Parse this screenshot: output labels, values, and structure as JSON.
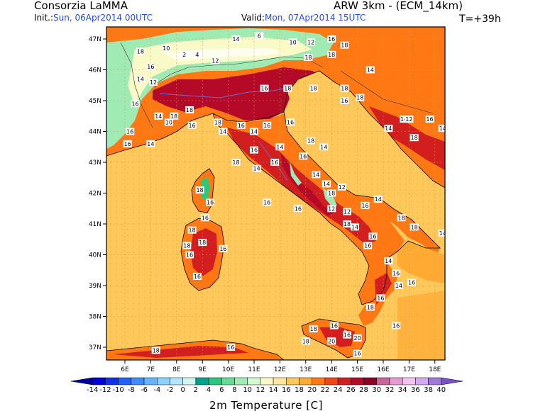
{
  "header": {
    "producer": "Consorzia LaMMA",
    "model": "ARW 3km - (ECM_14km)",
    "init_label": "Init.:",
    "init_value": "Sun, 06Apr2014 00UTC",
    "valid_label": "Valid:",
    "valid_value": "Mon, 07Apr2014 15UTC",
    "lead_time": "T=+39h"
  },
  "axes": {
    "lon_ticks": [
      "6E",
      "7E",
      "8E",
      "9E",
      "10E",
      "11E",
      "12E",
      "13E",
      "14E",
      "15E",
      "16E",
      "17E",
      "18E"
    ],
    "lat_ticks": [
      "47N",
      "46N",
      "45N",
      "44N",
      "43N",
      "42N",
      "41N",
      "40N",
      "39N",
      "38N",
      "37N"
    ]
  },
  "colorbar": {
    "title": "2m Temperature [C]",
    "labels": [
      "-14",
      "-12",
      "-10",
      "-8",
      "-6",
      "-4",
      "-2",
      "0",
      "2",
      "4",
      "6",
      "8",
      "10",
      "12",
      "14",
      "16",
      "18",
      "20",
      "22",
      "24",
      "26",
      "28",
      "30",
      "32",
      "34",
      "36",
      "38",
      "40"
    ],
    "colors": [
      "#0000a0",
      "#0000d8",
      "#1030f0",
      "#2060ff",
      "#3c8cff",
      "#64b4ff",
      "#8cd2ff",
      "#b4e6ff",
      "#d2f5f0",
      "#00a08c",
      "#28c87d",
      "#64dc96",
      "#a0ebb4",
      "#d2fad2",
      "#fafac8",
      "#ffe6a0",
      "#ffc85a",
      "#ffaa32",
      "#ff7814",
      "#f04614",
      "#d21e1e",
      "#b40a28",
      "#8c0028",
      "#c8649b",
      "#e69bd2",
      "#f0c3f0",
      "#d2aaf0",
      "#a078dc",
      "#7850c8"
    ]
  },
  "map_labels": [
    {
      "v": "16",
      "lon": 7.0,
      "lat": 46.1
    },
    {
      "v": "18",
      "lon": 6.6,
      "lat": 46.6
    },
    {
      "v": "10",
      "lon": 7.6,
      "lat": 46.7
    },
    {
      "v": "2",
      "lon": 8.3,
      "lat": 46.5
    },
    {
      "v": "4",
      "lon": 8.8,
      "lat": 46.5
    },
    {
      "v": "12",
      "lon": 9.5,
      "lat": 46.3
    },
    {
      "v": "14",
      "lon": 10.3,
      "lat": 47.0
    },
    {
      "v": "6",
      "lon": 11.2,
      "lat": 47.1
    },
    {
      "v": "10",
      "lon": 12.5,
      "lat": 46.9
    },
    {
      "v": "12",
      "lon": 13.2,
      "lat": 46.9
    },
    {
      "v": "16",
      "lon": 14.0,
      "lat": 47.0
    },
    {
      "v": "18",
      "lon": 14.5,
      "lat": 46.8
    },
    {
      "v": "14",
      "lon": 15.5,
      "lat": 46.0
    },
    {
      "v": "18",
      "lon": 14.0,
      "lat": 46.5
    },
    {
      "v": "14",
      "lon": 6.6,
      "lat": 45.7
    },
    {
      "v": "12",
      "lon": 7.1,
      "lat": 45.6
    },
    {
      "v": "16",
      "lon": 6.4,
      "lat": 44.9
    },
    {
      "v": "14",
      "lon": 7.3,
      "lat": 44.5
    },
    {
      "v": "10",
      "lon": 7.7,
      "lat": 44.3
    },
    {
      "v": "16",
      "lon": 6.2,
      "lat": 44.0
    },
    {
      "v": "18",
      "lon": 7.9,
      "lat": 44.5
    },
    {
      "v": "16",
      "lon": 8.6,
      "lat": 44.2
    },
    {
      "v": "18",
      "lon": 8.5,
      "lat": 44.7
    },
    {
      "v": "18",
      "lon": 9.6,
      "lat": 44.3
    },
    {
      "v": "14",
      "lon": 9.8,
      "lat": 44.0
    },
    {
      "v": "16",
      "lon": 10.5,
      "lat": 44.2
    },
    {
      "v": "14",
      "lon": 11.0,
      "lat": 44.0
    },
    {
      "v": "16",
      "lon": 11.5,
      "lat": 44.2
    },
    {
      "v": "16",
      "lon": 12.4,
      "lat": 44.3
    },
    {
      "v": "18",
      "lon": 12.3,
      "lat": 45.4
    },
    {
      "v": "16",
      "lon": 11.4,
      "lat": 45.4
    },
    {
      "v": "18",
      "lon": 13.1,
      "lat": 46.4
    },
    {
      "v": "18",
      "lon": 13.3,
      "lat": 45.4
    },
    {
      "v": "18",
      "lon": 14.5,
      "lat": 45.4
    },
    {
      "v": "16",
      "lon": 14.5,
      "lat": 45.0
    },
    {
      "v": "18",
      "lon": 15.1,
      "lat": 45.1
    },
    {
      "v": "14",
      "lon": 7.0,
      "lat": 43.6
    },
    {
      "v": "16",
      "lon": 6.1,
      "lat": 43.6
    },
    {
      "v": "18",
      "lon": 10.3,
      "lat": 43.0
    },
    {
      "v": "16",
      "lon": 11.0,
      "lat": 43.4
    },
    {
      "v": "14",
      "lon": 12.0,
      "lat": 43.5
    },
    {
      "v": "16",
      "lon": 12.9,
      "lat": 43.2
    },
    {
      "v": "14",
      "lon": 13.7,
      "lat": 43.5
    },
    {
      "v": "18",
      "lon": 13.2,
      "lat": 43.7
    },
    {
      "v": "16",
      "lon": 11.8,
      "lat": 43.0
    },
    {
      "v": "14",
      "lon": 11.1,
      "lat": 42.8
    },
    {
      "v": "14",
      "lon": 13.4,
      "lat": 42.6
    },
    {
      "v": "14",
      "lon": 13.8,
      "lat": 42.3
    },
    {
      "v": "18",
      "lon": 14.0,
      "lat": 42.0
    },
    {
      "v": "12",
      "lon": 14.4,
      "lat": 42.2
    },
    {
      "v": "16",
      "lon": 15.3,
      "lat": 41.6
    },
    {
      "v": "14",
      "lon": 15.8,
      "lat": 41.8
    },
    {
      "v": "18",
      "lon": 16.7,
      "lat": 41.2
    },
    {
      "v": "18",
      "lon": 17.2,
      "lat": 40.9
    },
    {
      "v": "16",
      "lon": 11.5,
      "lat": 41.7
    },
    {
      "v": "16",
      "lon": 12.7,
      "lat": 41.5
    },
    {
      "v": "12",
      "lon": 14.0,
      "lat": 41.5
    },
    {
      "v": "12",
      "lon": 14.6,
      "lat": 41.4
    },
    {
      "v": "18",
      "lon": 14.6,
      "lat": 41.0
    },
    {
      "v": "14",
      "lon": 14.9,
      "lat": 40.9
    },
    {
      "v": "16",
      "lon": 15.6,
      "lat": 40.6
    },
    {
      "v": "16",
      "lon": 15.4,
      "lat": 40.3
    },
    {
      "v": "14",
      "lon": 18.3,
      "lat": 40.7
    },
    {
      "v": "18",
      "lon": 8.9,
      "lat": 42.1
    },
    {
      "v": "16",
      "lon": 9.3,
      "lat": 41.7
    },
    {
      "v": "16",
      "lon": 9.1,
      "lat": 41.2
    },
    {
      "v": "18",
      "lon": 8.6,
      "lat": 40.8
    },
    {
      "v": "18",
      "lon": 8.4,
      "lat": 40.3
    },
    {
      "v": "16",
      "lon": 9.8,
      "lat": 40.2
    },
    {
      "v": "16",
      "lon": 8.8,
      "lat": 39.3
    },
    {
      "v": "16",
      "lon": 8.5,
      "lat": 40.0
    },
    {
      "v": "18",
      "lon": 9.0,
      "lat": 40.4
    },
    {
      "v": "14",
      "lon": 16.2,
      "lat": 39.8
    },
    {
      "v": "16",
      "lon": 16.5,
      "lat": 39.4
    },
    {
      "v": "14",
      "lon": 16.6,
      "lat": 39.0
    },
    {
      "v": "16",
      "lon": 17.1,
      "lat": 39.1
    },
    {
      "v": "16",
      "lon": 15.9,
      "lat": 38.6
    },
    {
      "v": "18",
      "lon": 15.5,
      "lat": 38.3
    },
    {
      "v": "16",
      "lon": 16.5,
      "lat": 37.7
    },
    {
      "v": "16",
      "lon": 14.1,
      "lat": 37.7
    },
    {
      "v": "18",
      "lon": 13.3,
      "lat": 37.6
    },
    {
      "v": "16",
      "lon": 14.6,
      "lat": 37.4
    },
    {
      "v": "20",
      "lon": 14.0,
      "lat": 37.2
    },
    {
      "v": "20",
      "lon": 15.0,
      "lat": 37.3
    },
    {
      "v": "18",
      "lon": 13.0,
      "lat": 37.2
    },
    {
      "v": "16",
      "lon": 15.0,
      "lat": 36.8
    },
    {
      "v": "14",
      "lon": 16.8,
      "lat": 44.4
    },
    {
      "v": "12",
      "lon": 17.0,
      "lat": 44.4
    },
    {
      "v": "16",
      "lon": 17.8,
      "lat": 44.4
    },
    {
      "v": "14",
      "lon": 18.3,
      "lat": 44.1
    },
    {
      "v": "18",
      "lon": 17.2,
      "lat": 43.8
    },
    {
      "v": "14",
      "lon": 16.2,
      "lat": 44.1
    },
    {
      "v": "16",
      "lon": 10.1,
      "lat": 37.0
    },
    {
      "v": "18",
      "lon": 7.2,
      "lat": 36.9
    }
  ]
}
